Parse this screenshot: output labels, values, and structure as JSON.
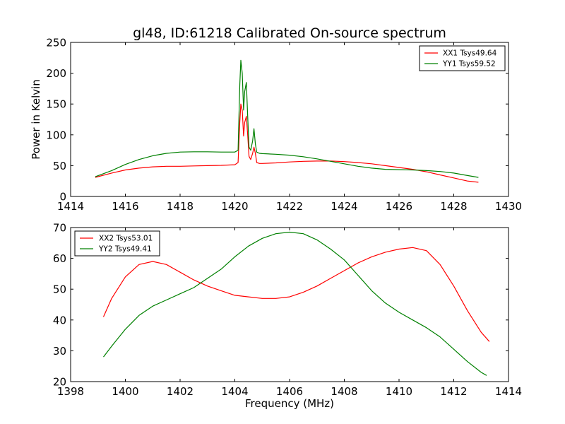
{
  "title": "gl48, ID:61218 Calibrated On-source spectrum",
  "colors": {
    "red": "#ff0000",
    "green": "#008000"
  },
  "chart_data": [
    {
      "type": "line",
      "xlabel": "",
      "ylabel": "Power in Kelvin",
      "xlim": [
        1414,
        1430
      ],
      "ylim": [
        0,
        250
      ],
      "xticks": [
        1414,
        1416,
        1418,
        1420,
        1422,
        1424,
        1426,
        1428,
        1430
      ],
      "yticks": [
        0,
        50,
        100,
        150,
        200,
        250
      ],
      "legend_position": "top-right",
      "grid": false,
      "series": [
        {
          "name": "XX1 Tsys49.64",
          "color": "red",
          "x": [
            1414.9,
            1415.5,
            1416.0,
            1416.5,
            1417.0,
            1417.5,
            1418.0,
            1418.5,
            1419.0,
            1419.5,
            1420.0,
            1420.12,
            1420.18,
            1420.22,
            1420.27,
            1420.32,
            1420.36,
            1420.42,
            1420.47,
            1420.52,
            1420.58,
            1420.65,
            1420.7,
            1420.75,
            1420.8,
            1420.9,
            1421.0,
            1421.5,
            1422.0,
            1422.5,
            1423.0,
            1423.5,
            1424.0,
            1424.5,
            1425.0,
            1425.5,
            1426.0,
            1426.5,
            1427.0,
            1427.5,
            1428.0,
            1428.5,
            1428.9
          ],
          "y": [
            31,
            38,
            43,
            46,
            48,
            49,
            49,
            49.5,
            50,
            50.5,
            51.5,
            55,
            120,
            150,
            140,
            98,
            120,
            130,
            100,
            65,
            60,
            70,
            80,
            70,
            55,
            53.5,
            53.5,
            54.5,
            56,
            57,
            57.5,
            57.5,
            56.5,
            55,
            53,
            50,
            47,
            44,
            40,
            35,
            30,
            25,
            23
          ]
        },
        {
          "name": "YY1 Tsys59.52",
          "color": "green",
          "x": [
            1414.9,
            1415.5,
            1416.0,
            1416.5,
            1417.0,
            1417.5,
            1418.0,
            1418.5,
            1419.0,
            1419.5,
            1420.0,
            1420.12,
            1420.18,
            1420.22,
            1420.27,
            1420.32,
            1420.36,
            1420.42,
            1420.47,
            1420.52,
            1420.58,
            1420.65,
            1420.7,
            1420.75,
            1420.8,
            1420.9,
            1421.0,
            1421.5,
            1422.0,
            1422.5,
            1423.0,
            1423.5,
            1424.0,
            1424.5,
            1425.0,
            1425.5,
            1426.0,
            1426.5,
            1427.0,
            1427.5,
            1428.0,
            1428.5,
            1428.9
          ],
          "y": [
            32,
            42,
            52,
            60,
            66,
            70,
            72,
            72.5,
            72.5,
            72,
            72,
            75,
            180,
            221,
            200,
            140,
            170,
            185,
            130,
            80,
            75,
            90,
            110,
            85,
            72,
            70,
            69.5,
            68.5,
            67,
            64.5,
            61,
            57,
            53,
            49,
            46,
            44,
            43.5,
            43,
            42,
            40.5,
            38,
            34,
            31
          ]
        }
      ]
    },
    {
      "type": "line",
      "xlabel": "Frequency (MHz)",
      "ylabel": "",
      "xlim": [
        1398,
        1414
      ],
      "ylim": [
        20,
        70
      ],
      "xticks": [
        1398,
        1400,
        1402,
        1404,
        1406,
        1408,
        1410,
        1412,
        1414
      ],
      "yticks": [
        20,
        30,
        40,
        50,
        60,
        70
      ],
      "legend_position": "top-left",
      "grid": false,
      "series": [
        {
          "name": "XX2 Tsys53.01",
          "color": "red",
          "x": [
            1399.2,
            1399.5,
            1400.0,
            1400.5,
            1401.0,
            1401.5,
            1402.0,
            1402.5,
            1403.0,
            1403.5,
            1404.0,
            1404.5,
            1405.0,
            1405.5,
            1406.0,
            1406.5,
            1407.0,
            1407.5,
            1408.0,
            1408.5,
            1409.0,
            1409.5,
            1410.0,
            1410.5,
            1411.0,
            1411.5,
            1412.0,
            1412.5,
            1413.0,
            1413.3
          ],
          "y": [
            41,
            47,
            54,
            58,
            59,
            58,
            55.5,
            53,
            51,
            49.5,
            48,
            47.5,
            47,
            47,
            47.5,
            49,
            51,
            53.5,
            56,
            58.5,
            60.5,
            62,
            63,
            63.5,
            62.5,
            58,
            51,
            43,
            36,
            33
          ]
        },
        {
          "name": "YY2 Tsys49.41",
          "color": "green",
          "x": [
            1399.2,
            1399.5,
            1400.0,
            1400.5,
            1401.0,
            1401.5,
            1402.0,
            1402.5,
            1403.0,
            1403.5,
            1404.0,
            1404.5,
            1405.0,
            1405.5,
            1406.0,
            1406.5,
            1407.0,
            1407.5,
            1408.0,
            1408.5,
            1409.0,
            1409.5,
            1410.0,
            1410.5,
            1411.0,
            1411.5,
            1412.0,
            1412.5,
            1413.0,
            1413.2
          ],
          "y": [
            28,
            31.5,
            37,
            41.5,
            44.5,
            46.5,
            48.5,
            50.5,
            53.5,
            56.5,
            60.5,
            64,
            66.5,
            68,
            68.5,
            68,
            66,
            63,
            59.5,
            54.5,
            49.5,
            45.5,
            42.5,
            40,
            37.5,
            34.5,
            30.5,
            26.5,
            23,
            22
          ]
        }
      ]
    }
  ]
}
